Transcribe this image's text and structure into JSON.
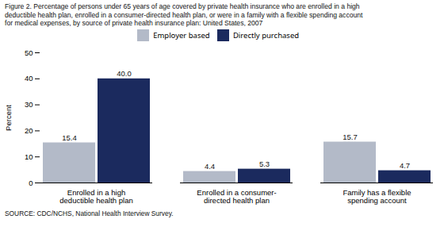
{
  "chart_data": {
    "type": "bar",
    "title": "Figure 2. Percentage of persons under 65 years of age covered by private health insurance who are enrolled in a high\ndeductible health plan, enrolled in a consumer-directed health plan, or were  in a family with a flexible spending account\nfor medical expenses, by source of private health insurance plan: United States, 2007",
    "source": "SOURCE: CDC/NCHS, National Health Interview Survey.",
    "ylabel": "Percent",
    "categories": [
      "Enrolled in a high\ndeductible health plan",
      "Enrolled in a consumer-\ndirected health plan",
      "Family has a flexible\nspending account"
    ],
    "series": [
      {
        "name": "Employer based",
        "color": "#b3bac8",
        "values": [
          15.4,
          4.4,
          15.7
        ],
        "value_labels": [
          "15.4",
          "4.4",
          "15.7"
        ]
      },
      {
        "name": "Directly purchased",
        "color": "#1b2a5e",
        "values": [
          40.0,
          5.3,
          4.7
        ],
        "value_labels": [
          "40.0",
          "5.3",
          "4.7"
        ]
      }
    ],
    "ylim": [
      0,
      50
    ],
    "yticks": [
      0,
      10,
      20,
      30,
      40,
      50
    ],
    "data_labels": true,
    "legend": "upper center",
    "grid": false
  }
}
